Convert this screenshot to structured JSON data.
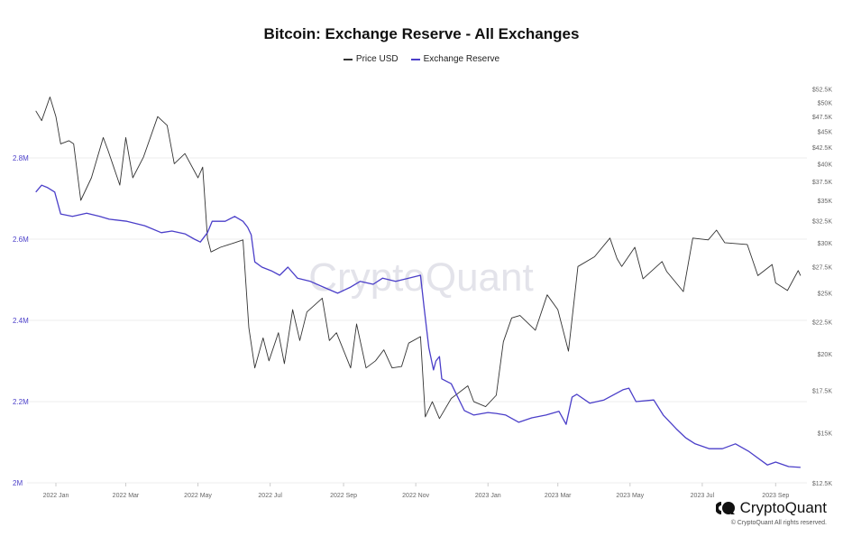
{
  "chart_data": {
    "type": "line",
    "title": "Bitcoin: Exchange Reserve - All Exchanges",
    "legend_position": "top",
    "grid": true,
    "watermark": "CryptoQuant",
    "x_ticks": [
      "2022 Jan",
      "2022 Mar",
      "2022 May",
      "2022 Jul",
      "2022 Sep",
      "2022 Nov",
      "2023 Jan",
      "2023 Mar",
      "2023 May",
      "2023 Jul",
      "2023 Sep"
    ],
    "y_left": {
      "ticks": [
        "2M",
        "2.2M",
        "2.4M",
        "2.6M",
        "2.8M"
      ],
      "range": [
        2000000,
        3000000
      ],
      "scale": "linear",
      "color": "#4b3fc9"
    },
    "y_right": {
      "ticks": [
        "$12.5K",
        "$15K",
        "$17.5K",
        "$20K",
        "$22.5K",
        "$25K",
        "$27.5K",
        "$30K",
        "$32.5K",
        "$35K",
        "$37.5K",
        "$40K",
        "$42.5K",
        "$45K",
        "$47.5K",
        "$50K",
        "$52.5K"
      ],
      "range": [
        12500,
        52500
      ],
      "scale": "log"
    },
    "series": [
      {
        "name": "Price USD",
        "axis": "right",
        "color": "#333333",
        "points": [
          [
            "2021-12-15",
            48500
          ],
          [
            "2021-12-20",
            46800
          ],
          [
            "2021-12-27",
            51000
          ],
          [
            "2022-01-01",
            47500
          ],
          [
            "2022-01-05",
            43000
          ],
          [
            "2022-01-12",
            43500
          ],
          [
            "2022-01-16",
            43000
          ],
          [
            "2022-01-22",
            35000
          ],
          [
            "2022-01-31",
            38000
          ],
          [
            "2022-02-10",
            44000
          ],
          [
            "2022-02-14",
            42000
          ],
          [
            "2022-02-24",
            37000
          ],
          [
            "2022-03-01",
            44000
          ],
          [
            "2022-03-07",
            38000
          ],
          [
            "2022-03-16",
            41000
          ],
          [
            "2022-03-28",
            47500
          ],
          [
            "2022-04-05",
            46000
          ],
          [
            "2022-04-11",
            40000
          ],
          [
            "2022-04-20",
            41500
          ],
          [
            "2022-05-01",
            38000
          ],
          [
            "2022-05-05",
            39500
          ],
          [
            "2022-05-09",
            30500
          ],
          [
            "2022-05-12",
            29000
          ],
          [
            "2022-05-20",
            29500
          ],
          [
            "2022-06-01",
            30000
          ],
          [
            "2022-06-08",
            30300
          ],
          [
            "2022-06-13",
            22000
          ],
          [
            "2022-06-18",
            19000
          ],
          [
            "2022-06-25",
            21200
          ],
          [
            "2022-06-30",
            19500
          ],
          [
            "2022-07-08",
            21600
          ],
          [
            "2022-07-13",
            19300
          ],
          [
            "2022-07-20",
            23500
          ],
          [
            "2022-07-26",
            21000
          ],
          [
            "2022-08-01",
            23300
          ],
          [
            "2022-08-14",
            24500
          ],
          [
            "2022-08-20",
            21000
          ],
          [
            "2022-08-26",
            21600
          ],
          [
            "2022-09-07",
            19000
          ],
          [
            "2022-09-12",
            22300
          ],
          [
            "2022-09-20",
            19000
          ],
          [
            "2022-09-28",
            19500
          ],
          [
            "2022-10-05",
            20300
          ],
          [
            "2022-10-12",
            19000
          ],
          [
            "2022-10-20",
            19100
          ],
          [
            "2022-10-26",
            20800
          ],
          [
            "2022-11-05",
            21300
          ],
          [
            "2022-11-09",
            15900
          ],
          [
            "2022-11-15",
            16800
          ],
          [
            "2022-11-21",
            15800
          ],
          [
            "2022-12-01",
            17000
          ],
          [
            "2022-12-15",
            17800
          ],
          [
            "2022-12-20",
            16800
          ],
          [
            "2022-12-30",
            16500
          ],
          [
            "2023-01-08",
            17200
          ],
          [
            "2023-01-14",
            20900
          ],
          [
            "2023-01-21",
            22800
          ],
          [
            "2023-01-28",
            23000
          ],
          [
            "2023-02-10",
            21800
          ],
          [
            "2023-02-20",
            24800
          ],
          [
            "2023-03-01",
            23500
          ],
          [
            "2023-03-10",
            20200
          ],
          [
            "2023-03-18",
            27500
          ],
          [
            "2023-04-01",
            28500
          ],
          [
            "2023-04-14",
            30500
          ],
          [
            "2023-04-20",
            28300
          ],
          [
            "2023-04-24",
            27500
          ],
          [
            "2023-05-05",
            29500
          ],
          [
            "2023-05-12",
            26300
          ],
          [
            "2023-05-28",
            28000
          ],
          [
            "2023-06-01",
            27000
          ],
          [
            "2023-06-15",
            25100
          ],
          [
            "2023-06-23",
            30500
          ],
          [
            "2023-07-06",
            30300
          ],
          [
            "2023-07-13",
            31400
          ],
          [
            "2023-07-20",
            30000
          ],
          [
            "2023-08-08",
            29800
          ],
          [
            "2023-08-17",
            26600
          ],
          [
            "2023-08-29",
            27700
          ],
          [
            "2023-09-01",
            25900
          ],
          [
            "2023-09-11",
            25200
          ],
          [
            "2023-09-20",
            27100
          ],
          [
            "2023-09-22",
            26600
          ]
        ]
      },
      {
        "name": "Exchange Reserve",
        "axis": "left",
        "color": "#4b3fc9",
        "points": [
          [
            "2021-12-15",
            2716000
          ],
          [
            "2021-12-20",
            2733000
          ],
          [
            "2021-12-25",
            2727000
          ],
          [
            "2021-12-31",
            2716000
          ],
          [
            "2022-01-05",
            2662000
          ],
          [
            "2022-01-15",
            2656000
          ],
          [
            "2022-01-27",
            2664000
          ],
          [
            "2022-02-07",
            2656000
          ],
          [
            "2022-02-15",
            2649000
          ],
          [
            "2022-03-02",
            2644000
          ],
          [
            "2022-03-17",
            2633000
          ],
          [
            "2022-03-31",
            2616000
          ],
          [
            "2022-04-09",
            2620000
          ],
          [
            "2022-04-20",
            2613000
          ],
          [
            "2022-04-28",
            2600000
          ],
          [
            "2022-05-03",
            2593000
          ],
          [
            "2022-05-09",
            2616000
          ],
          [
            "2022-05-13",
            2644000
          ],
          [
            "2022-05-24",
            2644000
          ],
          [
            "2022-06-01",
            2656000
          ],
          [
            "2022-06-08",
            2644000
          ],
          [
            "2022-06-12",
            2629000
          ],
          [
            "2022-06-15",
            2611000
          ],
          [
            "2022-06-18",
            2544000
          ],
          [
            "2022-06-24",
            2531000
          ],
          [
            "2022-07-02",
            2522000
          ],
          [
            "2022-07-09",
            2511000
          ],
          [
            "2022-07-16",
            2531000
          ],
          [
            "2022-07-24",
            2504000
          ],
          [
            "2022-08-04",
            2496000
          ],
          [
            "2022-08-15",
            2482000
          ],
          [
            "2022-08-27",
            2467000
          ],
          [
            "2022-09-07",
            2482000
          ],
          [
            "2022-09-15",
            2496000
          ],
          [
            "2022-09-26",
            2489000
          ],
          [
            "2022-10-04",
            2504000
          ],
          [
            "2022-10-15",
            2496000
          ],
          [
            "2022-10-26",
            2504000
          ],
          [
            "2022-11-05",
            2511000
          ],
          [
            "2022-11-08",
            2433000
          ],
          [
            "2022-11-12",
            2333000
          ],
          [
            "2022-11-16",
            2278000
          ],
          [
            "2022-11-18",
            2300000
          ],
          [
            "2022-11-21",
            2311000
          ],
          [
            "2022-11-23",
            2256000
          ],
          [
            "2022-12-01",
            2244000
          ],
          [
            "2022-12-12",
            2178000
          ],
          [
            "2022-12-20",
            2167000
          ],
          [
            "2023-01-01",
            2173000
          ],
          [
            "2023-01-08",
            2171000
          ],
          [
            "2023-01-16",
            2167000
          ],
          [
            "2023-01-27",
            2149000
          ],
          [
            "2023-02-07",
            2160000
          ],
          [
            "2023-02-19",
            2167000
          ],
          [
            "2023-03-02",
            2176000
          ],
          [
            "2023-03-08",
            2144000
          ],
          [
            "2023-03-13",
            2211000
          ],
          [
            "2023-03-17",
            2218000
          ],
          [
            "2023-03-28",
            2196000
          ],
          [
            "2023-04-09",
            2204000
          ],
          [
            "2023-04-25",
            2229000
          ],
          [
            "2023-04-30",
            2233000
          ],
          [
            "2023-05-06",
            2200000
          ],
          [
            "2023-05-21",
            2204000
          ],
          [
            "2023-05-29",
            2167000
          ],
          [
            "2023-06-09",
            2133000
          ],
          [
            "2023-06-17",
            2111000
          ],
          [
            "2023-06-25",
            2096000
          ],
          [
            "2023-07-07",
            2084000
          ],
          [
            "2023-07-18",
            2084000
          ],
          [
            "2023-07-29",
            2096000
          ],
          [
            "2023-08-09",
            2078000
          ],
          [
            "2023-08-25",
            2044000
          ],
          [
            "2023-09-01",
            2051000
          ],
          [
            "2023-09-12",
            2040000
          ],
          [
            "2023-09-22",
            2038000
          ]
        ]
      }
    ]
  },
  "footer": {
    "brand": "CryptoQuant",
    "copyright": "© CryptoQuant All rights reserved."
  }
}
